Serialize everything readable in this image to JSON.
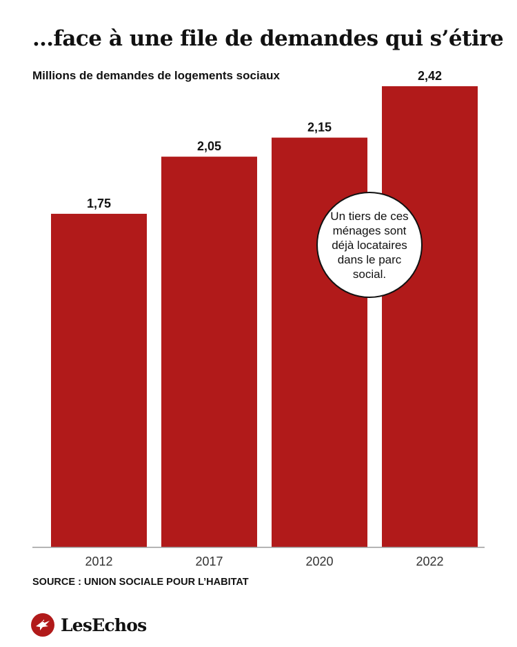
{
  "title": "…face à une file de demandes qui s’étire",
  "subtitle": "Millions de demandes de logements sociaux",
  "callout": {
    "text": "Un tiers de ces ménages sont déjà locataires dans le parc social."
  },
  "source": "SOURCE : UNION SOCIALE POUR L’HABITAT",
  "logo": {
    "text": "LesEchos",
    "icon": "echos-bird-icon"
  },
  "colors": {
    "bar": "#b11a1a",
    "axis": "#999999",
    "text": "#111111"
  },
  "chart_data": {
    "type": "bar",
    "title": "…face à une file de demandes qui s’étire",
    "ylabel": "Millions de demandes de logements sociaux",
    "xlabel": "",
    "categories": [
      "2012",
      "2017",
      "2020",
      "2022"
    ],
    "values": [
      1.75,
      2.05,
      2.15,
      2.42
    ],
    "value_labels": [
      "1,75",
      "2,05",
      "2,15",
      "2,42"
    ],
    "ylim": [
      0,
      2.42
    ],
    "grid": false,
    "legend": "none"
  }
}
